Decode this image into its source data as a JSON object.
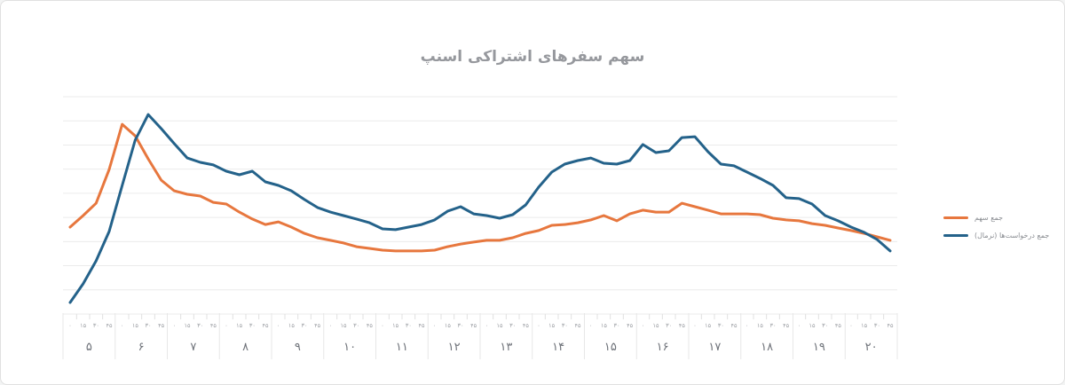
{
  "title": "سهم سفرهای اشتراکی اسنپ",
  "legend": {
    "items": [
      {
        "label": "جمع سهم",
        "color": "#e7773e"
      },
      {
        "label": "جمع درخواست‌ها (نرمال)",
        "color": "#24628a"
      }
    ]
  },
  "colors": {
    "grid": "#ebebeb",
    "axis_divider": "#e7e7e7",
    "minor_tick": "#e0e0e0",
    "minor_label": "#9b9ea3",
    "major_label": "#6f737a",
    "title": "#96989d"
  },
  "chart_data": {
    "type": "line",
    "title": "سهم سفرهای اشتراکی اسنپ",
    "xlabel": "",
    "ylabel": "",
    "ylim": [
      0,
      100
    ],
    "grid": true,
    "gridlines": 10,
    "legend_position": "right",
    "x_axis": {
      "hour_labels": [
        "۵",
        "۶",
        "۷",
        "۸",
        "۹",
        "۱۰",
        "۱۱",
        "۱۲",
        "۱۳",
        "۱۴",
        "۱۵",
        "۱۶",
        "۱۷",
        "۱۸",
        "۱۹",
        "۲۰"
      ],
      "minute_labels": [
        "۰",
        "۱۵",
        "۳۰",
        "۴۵"
      ]
    },
    "series": [
      {
        "name": "جمع سهم",
        "color": "#e7773e",
        "values": [
          40.0,
          45.3,
          51.0,
          66.5,
          87.3,
          82.0,
          71.4,
          61.6,
          56.7,
          55.1,
          54.3,
          51.4,
          50.6,
          46.9,
          43.7,
          41.2,
          42.4,
          40.0,
          37.1,
          35.1,
          33.9,
          32.7,
          31.0,
          30.2,
          29.4,
          29.0,
          29.0,
          29.0,
          29.4,
          31.0,
          32.2,
          33.1,
          33.9,
          33.9,
          35.1,
          37.1,
          38.4,
          40.8,
          41.2,
          42.0,
          43.3,
          45.3,
          42.9,
          46.1,
          47.8,
          46.9,
          46.9,
          51.0,
          49.4,
          47.8,
          46.1,
          46.1,
          46.1,
          45.7,
          44.1,
          43.3,
          42.9,
          41.6,
          40.8,
          39.6,
          38.4,
          37.1,
          35.5,
          33.9
        ]
      },
      {
        "name": "جمع درخواست‌ها (نرمال)",
        "color": "#24628a",
        "values": [
          5.3,
          13.9,
          24.5,
          38.0,
          59.2,
          80.0,
          91.8,
          85.3,
          78.4,
          71.8,
          69.8,
          68.6,
          65.7,
          64.1,
          65.7,
          60.8,
          59.2,
          56.7,
          52.7,
          49.0,
          46.9,
          45.3,
          43.7,
          42.0,
          39.2,
          38.8,
          40.0,
          41.2,
          43.3,
          47.3,
          49.4,
          46.1,
          45.3,
          44.1,
          45.7,
          50.2,
          58.4,
          65.3,
          69.0,
          70.6,
          71.8,
          69.4,
          69.0,
          70.6,
          78.0,
          74.3,
          75.1,
          81.2,
          81.6,
          74.7,
          69.0,
          68.2,
          65.3,
          62.4,
          59.2,
          53.5,
          53.1,
          50.6,
          45.3,
          42.9,
          40.0,
          37.6,
          34.3,
          29.0
        ]
      }
    ]
  }
}
